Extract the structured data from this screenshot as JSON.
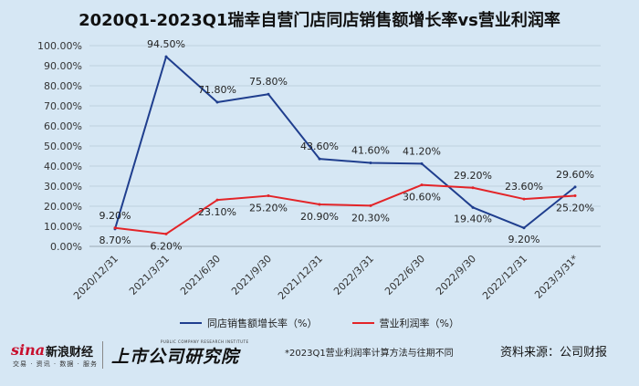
{
  "chart_data": {
    "type": "line",
    "title": "2020Q1-2023Q1瑞幸自营门店同店销售额增长率vs营业利润率",
    "categories": [
      "2020/12/31",
      "2021/3/31",
      "2021/6/30",
      "2021/9/30",
      "2021/12/31",
      "2022/3/31",
      "2022/6/30",
      "2022/9/30",
      "2022/12/31",
      "2023/3/31*"
    ],
    "series": [
      {
        "name": "同店销售额增长率（%）",
        "color": "#1f3e8e",
        "values": [
          8.7,
          94.5,
          71.8,
          75.8,
          43.6,
          41.6,
          41.2,
          19.4,
          9.2,
          29.6
        ],
        "labels": [
          "8.70%",
          "94.50%",
          "71.80%",
          "75.80%",
          "43.60%",
          "41.60%",
          "41.20%",
          "19.40%",
          "9.20%",
          "29.60%"
        ]
      },
      {
        "name": "营业利润率（%）",
        "color": "#e32428",
        "values": [
          9.2,
          6.2,
          23.1,
          25.2,
          20.9,
          20.3,
          30.6,
          29.2,
          23.6,
          25.2
        ],
        "labels": [
          "9.20%",
          "6.20%",
          "23.10%",
          "25.20%",
          "20.90%",
          "20.30%",
          "30.60%",
          "29.20%",
          "23.60%",
          "25.20%"
        ]
      }
    ],
    "yticks": [
      "0.00%",
      "10.00%",
      "20.00%",
      "30.00%",
      "40.00%",
      "50.00%",
      "60.00%",
      "70.00%",
      "80.00%",
      "90.00%",
      "100.00%"
    ],
    "ylim": [
      0,
      100
    ],
    "grid": true,
    "legend_position": "bottom"
  },
  "footer": {
    "sina_logo": "sina",
    "sina_name": "新浪财经",
    "sina_sub": "交易 · 资讯 · 数据 · 服务",
    "brand": "上市公司研究院",
    "brand_sub": "PUBLIC COMPANY RESEARCH INSTITUTE",
    "footnote": "*2023Q1营业利润率计算方法与往期不同",
    "source": "资料来源：公司财报"
  }
}
